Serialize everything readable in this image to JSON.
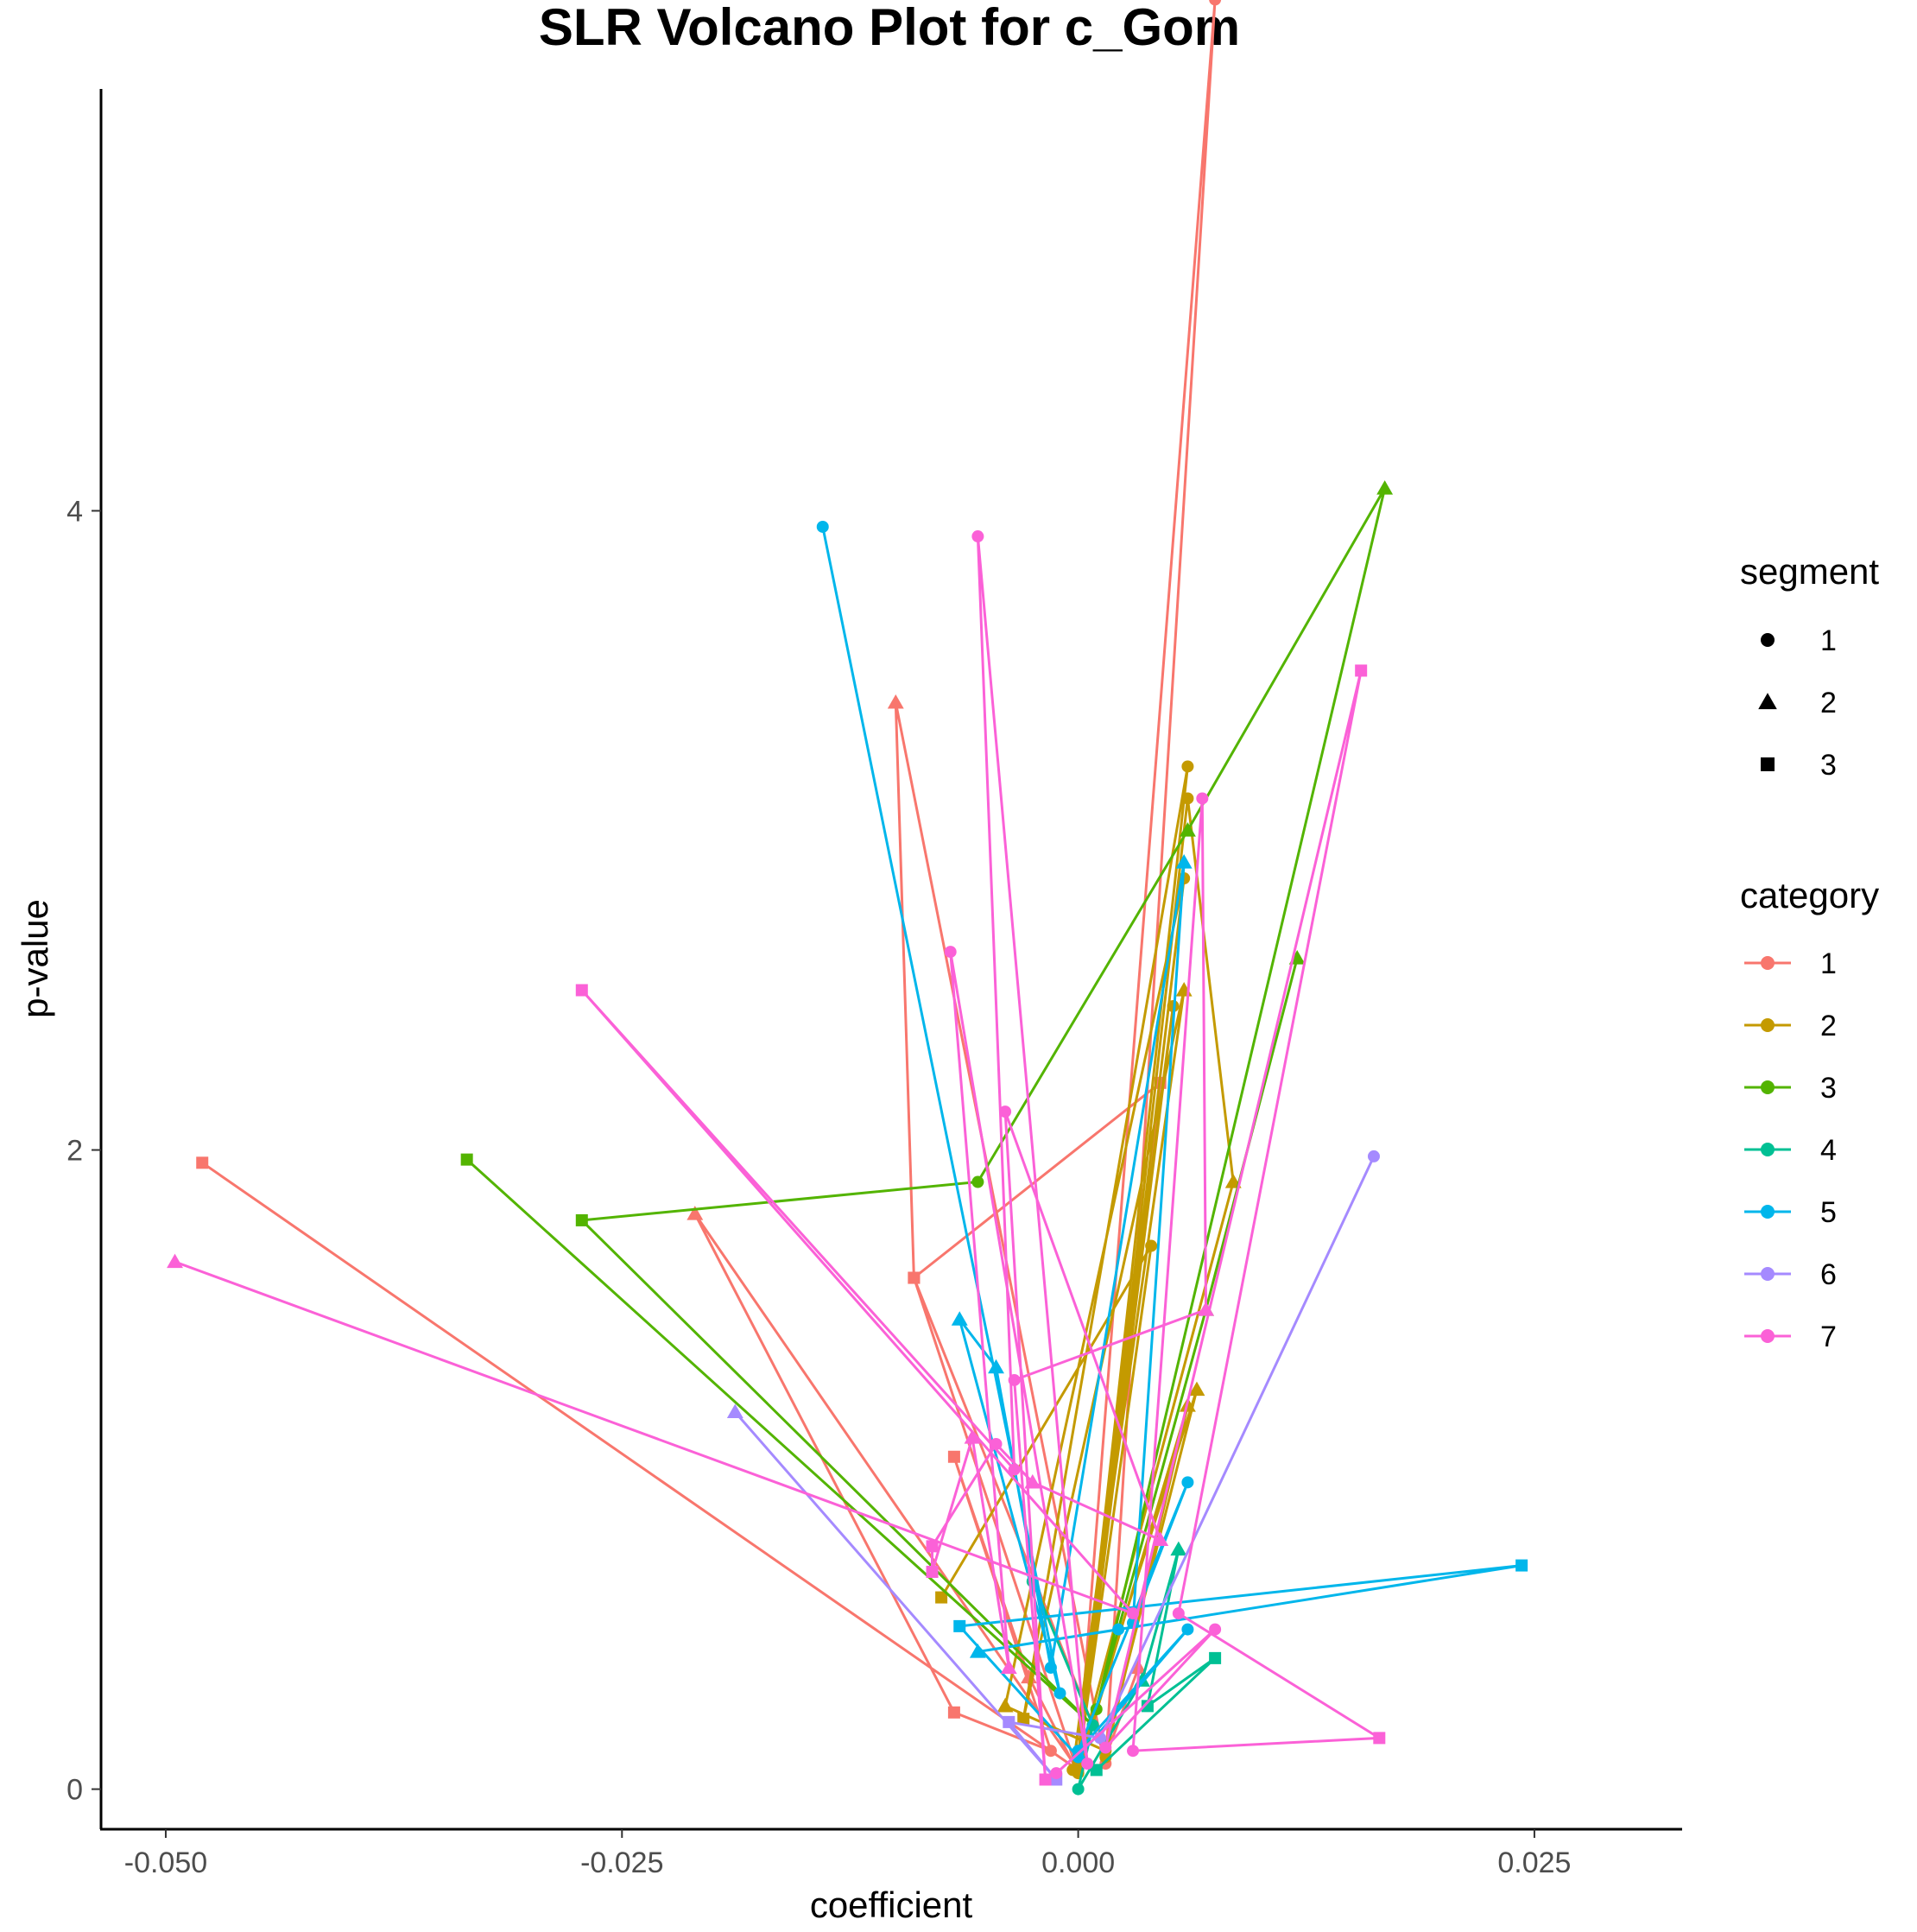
{
  "chart_data": {
    "type": "line",
    "title": "SLR Volcano Plot for c_Gom",
    "xlabel": "coefficient",
    "ylabel": "p-value",
    "xlim": [
      -0.0535,
      0.033
    ],
    "ylim": [
      -0.12,
      5.32
    ],
    "x_ticks": [
      -0.05,
      -0.025,
      0.0,
      0.025
    ],
    "x_tick_labels": [
      "-0.050",
      "-0.025",
      "0.000",
      "0.025"
    ],
    "y_ticks": [
      0,
      2,
      4
    ],
    "y_tick_labels": [
      "0",
      "2",
      "4"
    ],
    "grid": false,
    "legend_position": "right",
    "segment_legend": {
      "title": "segment",
      "entries": [
        {
          "label": "1",
          "shape": "circle"
        },
        {
          "label": "2",
          "shape": "triangle"
        },
        {
          "label": "3",
          "shape": "square"
        }
      ]
    },
    "category_legend": {
      "title": "category",
      "entries": [
        {
          "label": "1",
          "color": "#F8766D"
        },
        {
          "label": "2",
          "color": "#C49A00"
        },
        {
          "label": "3",
          "color": "#53B400"
        },
        {
          "label": "4",
          "color": "#00C094"
        },
        {
          "label": "5",
          "color": "#00B6EB"
        },
        {
          "label": "6",
          "color": "#A58AFF"
        },
        {
          "label": "7",
          "color": "#FB61D7"
        }
      ]
    },
    "series": [
      {
        "category": "1",
        "color": "#F8766D",
        "points": [
          [
            -0.048,
            1.96,
            "square"
          ],
          [
            0.0,
            0.06,
            "circle"
          ],
          [
            -0.021,
            1.8,
            "triangle"
          ],
          [
            -0.0068,
            0.24,
            "square"
          ],
          [
            -0.0015,
            0.12,
            "circle"
          ],
          [
            -0.0068,
            1.04,
            "square"
          ],
          [
            -0.0027,
            0.35,
            "triangle"
          ],
          [
            0.0,
            0.05,
            "circle"
          ],
          [
            -0.009,
            1.6,
            "square"
          ],
          [
            0.0045,
            2.21,
            "square"
          ],
          [
            0.0,
            0.08,
            "circle"
          ],
          [
            0.0075,
            5.6,
            "circle"
          ],
          [
            0.0015,
            0.08,
            "circle"
          ],
          [
            -0.01,
            3.4,
            "triangle"
          ],
          [
            -0.009,
            1.6,
            "square"
          ],
          [
            0.0015,
            0.1,
            "circle"
          ],
          [
            0.0033,
            0.38,
            "triangle"
          ]
        ]
      },
      {
        "category": "2",
        "color": "#C49A00",
        "points": [
          [
            -0.0075,
            0.6,
            "square"
          ],
          [
            0.004,
            1.7,
            "circle"
          ],
          [
            0.0,
            0.07,
            "circle"
          ],
          [
            0.0052,
            2.45,
            "circle"
          ],
          [
            -0.0003,
            0.06,
            "circle"
          ],
          [
            0.0058,
            2.5,
            "triangle"
          ],
          [
            -0.003,
            0.22,
            "square"
          ],
          [
            0.006,
            3.2,
            "circle"
          ],
          [
            0.0,
            0.1,
            "circle"
          ],
          [
            0.0058,
            2.85,
            "circle"
          ],
          [
            -0.004,
            0.26,
            "triangle"
          ],
          [
            0.0015,
            0.12,
            "circle"
          ],
          [
            0.0065,
            1.25,
            "triangle"
          ],
          [
            0.0,
            0.08,
            "circle"
          ],
          [
            0.0085,
            1.9,
            "triangle"
          ],
          [
            0.006,
            3.1,
            "circle"
          ],
          [
            0.0,
            0.05,
            "circle"
          ],
          [
            0.006,
            1.2,
            "triangle"
          ],
          [
            0.0015,
            0.1,
            "circle"
          ]
        ]
      },
      {
        "category": "3",
        "color": "#53B400",
        "points": [
          [
            -0.0335,
            1.97,
            "square"
          ],
          [
            0.0008,
            0.2,
            "circle"
          ],
          [
            -0.0272,
            1.78,
            "square"
          ],
          [
            -0.0055,
            1.9,
            "circle"
          ],
          [
            0.006,
            3.0,
            "triangle"
          ],
          [
            0.0168,
            4.07,
            "triangle"
          ],
          [
            0.001,
            0.25,
            "circle"
          ],
          [
            0.007,
            1.5,
            "triangle"
          ],
          [
            0.012,
            2.6,
            "triangle"
          ]
        ]
      },
      {
        "category": "4",
        "color": "#00C094",
        "points": [
          [
            -0.0025,
            0.65,
            "circle"
          ],
          [
            0.0008,
            0.2,
            "circle"
          ],
          [
            0.0,
            0.0,
            "circle"
          ],
          [
            0.0035,
            0.34,
            "triangle"
          ],
          [
            0.0055,
            0.75,
            "triangle"
          ],
          [
            0.0038,
            0.26,
            "square"
          ],
          [
            0.0075,
            0.41,
            "square"
          ],
          [
            0.001,
            0.06,
            "square"
          ]
        ]
      },
      {
        "category": "5",
        "color": "#00B6EB",
        "points": [
          [
            -0.014,
            3.95,
            "circle"
          ],
          [
            -0.001,
            0.3,
            "circle"
          ],
          [
            -0.0065,
            1.47,
            "triangle"
          ],
          [
            -0.0045,
            1.32,
            "triangle"
          ],
          [
            -0.0015,
            0.38,
            "circle"
          ],
          [
            0.0058,
            2.9,
            "triangle"
          ],
          [
            0.003,
            0.52,
            "circle"
          ],
          [
            0.006,
            0.96,
            "circle"
          ],
          [
            0.0,
            0.12,
            "circle"
          ],
          [
            0.006,
            0.5,
            "circle"
          ],
          [
            0.0,
            0.1,
            "circle"
          ],
          [
            -0.0065,
            0.51,
            "square"
          ],
          [
            0.0243,
            0.7,
            "square"
          ],
          [
            -0.0055,
            0.43,
            "triangle"
          ],
          [
            0.0022,
            0.5,
            "circle"
          ]
        ]
      },
      {
        "category": "6",
        "color": "#A58AFF",
        "points": [
          [
            -0.0188,
            1.18,
            "triangle"
          ],
          [
            -0.0012,
            0.03,
            "square"
          ],
          [
            -0.0038,
            0.21,
            "square"
          ],
          [
            0.0012,
            0.16,
            "circle"
          ],
          [
            0.0162,
            1.98,
            "circle"
          ]
        ]
      },
      {
        "category": "7",
        "color": "#FB61D7",
        "points": [
          [
            -0.0495,
            1.65,
            "triangle"
          ],
          [
            0.003,
            0.55,
            "circle"
          ],
          [
            -0.0272,
            2.5,
            "square"
          ],
          [
            -0.0035,
            1.0,
            "circle"
          ],
          [
            -0.0055,
            3.92,
            "circle"
          ],
          [
            0.0005,
            0.08,
            "circle"
          ],
          [
            -0.007,
            2.62,
            "circle"
          ],
          [
            -0.0038,
            0.38,
            "triangle"
          ],
          [
            -0.0058,
            1.1,
            "triangle"
          ],
          [
            -0.008,
            0.68,
            "square"
          ],
          [
            -0.008,
            0.76,
            "square"
          ],
          [
            -0.0045,
            1.08,
            "circle"
          ],
          [
            -0.0025,
            0.96,
            "triangle"
          ],
          [
            0.0045,
            0.78,
            "triangle"
          ],
          [
            -0.004,
            2.12,
            "circle"
          ],
          [
            -0.0018,
            0.03,
            "square"
          ],
          [
            -0.0035,
            1.28,
            "circle"
          ],
          [
            0.007,
            1.5,
            "triangle"
          ],
          [
            0.0068,
            3.1,
            "circle"
          ],
          [
            0.003,
            0.12,
            "circle"
          ],
          [
            0.0165,
            0.16,
            "square"
          ],
          [
            0.0055,
            0.55,
            "circle"
          ],
          [
            0.0155,
            3.5,
            "square"
          ],
          [
            0.0015,
            0.13,
            "circle"
          ],
          [
            0.0075,
            0.5,
            "circle"
          ],
          [
            -0.0012,
            0.05,
            "circle"
          ]
        ]
      }
    ]
  }
}
